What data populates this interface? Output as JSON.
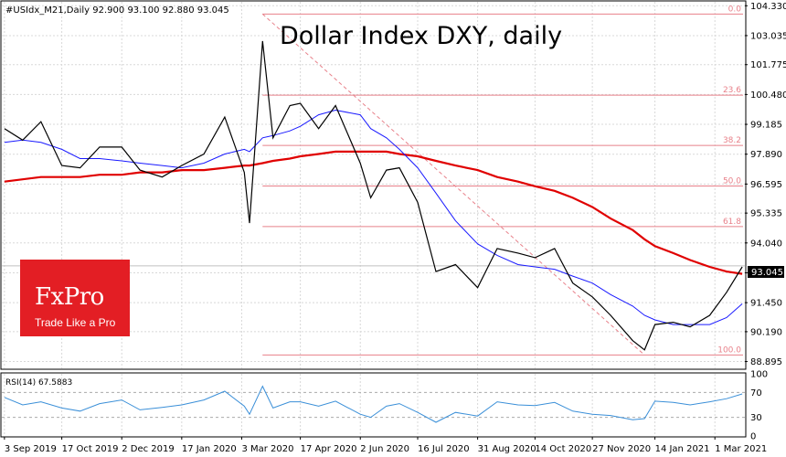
{
  "header": {
    "symbol_line": "#USIdx_M21,Daily  92.900 93.100 92.880 93.045",
    "title": "Dollar Index DXY, daily",
    "current_price": "93.045"
  },
  "logo": {
    "brand": "FxPro",
    "tagline": "Trade Like a Pro"
  },
  "colors": {
    "price": "#000000",
    "ma_short": "#1a1aff",
    "ma_long": "#e00000",
    "fibo": "#e8818a",
    "rsi": "#3a8fd8",
    "logo_bg": "#e31e24",
    "grid": "#d8d8d8"
  },
  "chart_data": [
    {
      "type": "line",
      "title": "Dollar Index DXY, daily",
      "x": [
        "2019-09-03",
        "2019-09-17",
        "2019-10-01",
        "2019-10-17",
        "2019-10-31",
        "2019-11-15",
        "2019-12-02",
        "2019-12-16",
        "2020-01-02",
        "2020-01-17",
        "2020-02-03",
        "2020-02-19",
        "2020-03-05",
        "2020-03-09",
        "2020-03-19",
        "2020-03-27",
        "2020-04-09",
        "2020-04-17",
        "2020-05-01",
        "2020-05-14",
        "2020-06-02",
        "2020-06-10",
        "2020-06-22",
        "2020-07-02",
        "2020-07-16",
        "2020-07-30",
        "2020-08-14",
        "2020-08-31",
        "2020-09-15",
        "2020-10-01",
        "2020-10-14",
        "2020-10-29",
        "2020-11-12",
        "2020-11-27",
        "2020-12-11",
        "2020-12-28",
        "2021-01-06",
        "2021-01-14",
        "2021-01-28",
        "2021-02-10",
        "2021-02-25",
        "2021-03-10",
        "2021-03-22"
      ],
      "series": [
        {
          "name": "",
          "values": [
            99.0,
            98.5,
            99.3,
            97.4,
            97.3,
            98.2,
            98.2,
            97.2,
            96.9,
            97.4,
            97.9,
            99.5,
            97.1,
            94.9,
            102.8,
            98.6,
            100.0,
            100.1,
            99.0,
            100.0,
            97.5,
            96.0,
            97.2,
            97.3,
            95.8,
            92.8,
            93.1,
            92.1,
            93.8,
            93.6,
            93.4,
            93.8,
            92.3,
            91.7,
            90.9,
            89.8,
            89.4,
            90.5,
            90.6,
            90.4,
            90.9,
            91.9,
            93.0
          ]
        },
        {
          "name": "",
          "values": [
            98.4,
            98.5,
            98.4,
            98.1,
            97.7,
            97.7,
            97.6,
            97.5,
            97.4,
            97.3,
            97.5,
            97.9,
            98.1,
            98.0,
            98.6,
            98.7,
            98.9,
            99.1,
            99.6,
            99.8,
            99.6,
            99.0,
            98.6,
            98.1,
            97.3,
            96.2,
            95.0,
            94.0,
            93.5,
            93.1,
            93.0,
            92.9,
            92.6,
            92.3,
            91.8,
            91.3,
            90.9,
            90.7,
            90.5,
            90.5,
            90.5,
            90.8,
            91.4
          ]
        },
        {
          "name": "",
          "values": [
            96.7,
            96.8,
            96.9,
            96.9,
            96.9,
            97.0,
            97.0,
            97.1,
            97.1,
            97.2,
            97.2,
            97.3,
            97.4,
            97.4,
            97.5,
            97.6,
            97.7,
            97.8,
            97.9,
            98.0,
            98.0,
            98.0,
            98.0,
            97.9,
            97.8,
            97.6,
            97.4,
            97.2,
            96.9,
            96.7,
            96.5,
            96.3,
            96.0,
            95.6,
            95.1,
            94.6,
            94.2,
            93.9,
            93.6,
            93.3,
            93.0,
            92.8,
            92.7
          ]
        }
      ],
      "fibonacci": {
        "levels": [
          "0.0",
          "23.6",
          "38.2",
          "50.0",
          "61.8",
          "100.0"
        ],
        "prices": [
          103.97,
          100.45,
          98.27,
          96.51,
          94.75,
          89.18
        ]
      },
      "y_ticks": [
        "104.330",
        "103.035",
        "101.775",
        "100.480",
        "99.185",
        "97.890",
        "96.595",
        "95.335",
        "94.040",
        "92.745",
        "91.450",
        "90.190",
        "88.895"
      ],
      "x_ticks": [
        "3 Sep 2019",
        "17 Oct 2019",
        "2 Dec 2019",
        "17 Jan 2020",
        "3 Mar 2020",
        "17 Apr 2020",
        "2 Jun 2020",
        "16 Jul 2020",
        "31 Aug 2020",
        "14 Oct 2020",
        "27 Nov 2020",
        "14 Jan 2021",
        "1 Mar 2021"
      ],
      "ylim": [
        88.6,
        104.5
      ]
    },
    {
      "type": "line",
      "title": "RSI(14) 67.5883",
      "series": [
        {
          "name": "",
          "values": [
            62,
            50,
            55,
            45,
            40,
            52,
            58,
            42,
            46,
            50,
            58,
            72,
            48,
            35,
            80,
            45,
            55,
            55,
            48,
            56,
            35,
            30,
            48,
            52,
            38,
            22,
            38,
            32,
            55,
            50,
            49,
            54,
            40,
            35,
            33,
            26,
            28,
            56,
            54,
            50,
            55,
            60,
            67.6
          ]
        }
      ],
      "y_ticks": [
        "100",
        "70",
        "30",
        "0"
      ],
      "ylim": [
        0,
        100
      ]
    }
  ]
}
